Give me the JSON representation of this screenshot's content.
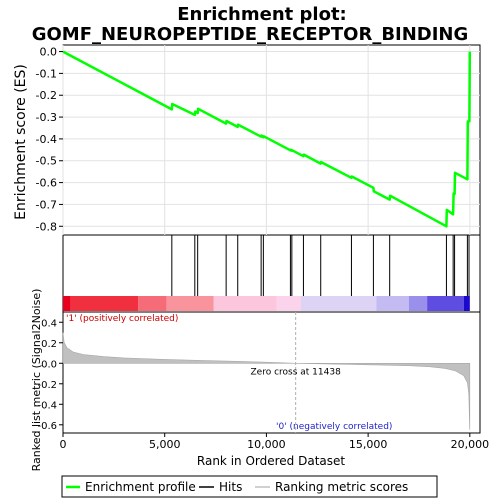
{
  "title_line1": "Enrichment plot:",
  "title_line2": "GOMF_NEUROPEPTIDE_RECEPTOR_BINDING",
  "chart_data": {
    "type": "line",
    "x_range": [
      0,
      20500
    ],
    "x_ticks": [
      0,
      5000,
      10000,
      15000,
      20000
    ],
    "x_tick_labels": [
      "0",
      "5,000",
      "10,000",
      "15,000",
      "20,000"
    ],
    "xlabel": "Rank in Ordered Dataset",
    "es_panel": {
      "ylabel": "Enrichment score (ES)",
      "ylim": [
        -0.84,
        0.03
      ],
      "y_ticks": [
        0.0,
        -0.1,
        -0.2,
        -0.3,
        -0.4,
        -0.5,
        -0.6,
        -0.7,
        -0.8
      ],
      "y_tick_labels": [
        "0.0",
        "-0.1",
        "-0.2",
        "-0.3",
        "-0.4",
        "-0.5",
        "-0.6",
        "-0.7",
        "-0.8"
      ],
      "series": [
        {
          "name": "Enrichment profile",
          "color": "#00ff00",
          "points": [
            [
              0,
              0.0
            ],
            [
              5350,
              -0.265
            ],
            [
              5370,
              -0.24
            ],
            [
              6480,
              -0.29
            ],
            [
              6500,
              -0.275
            ],
            [
              6620,
              -0.282
            ],
            [
              6640,
              -0.262
            ],
            [
              8020,
              -0.33
            ],
            [
              8040,
              -0.318
            ],
            [
              8590,
              -0.345
            ],
            [
              8610,
              -0.335
            ],
            [
              9740,
              -0.39
            ],
            [
              9760,
              -0.385
            ],
            [
              9850,
              -0.392
            ],
            [
              9870,
              -0.388
            ],
            [
              11180,
              -0.452
            ],
            [
              11200,
              -0.45
            ],
            [
              11250,
              -0.454
            ],
            [
              11270,
              -0.452
            ],
            [
              11820,
              -0.479
            ],
            [
              11840,
              -0.472
            ],
            [
              12670,
              -0.513
            ],
            [
              12690,
              -0.506
            ],
            [
              14180,
              -0.578
            ],
            [
              14200,
              -0.572
            ],
            [
              15260,
              -0.624
            ],
            [
              15280,
              -0.64
            ],
            [
              16060,
              -0.678
            ],
            [
              16080,
              -0.66
            ],
            [
              18850,
              -0.8
            ],
            [
              18870,
              -0.725
            ],
            [
              19180,
              -0.745
            ],
            [
              19200,
              -0.65
            ],
            [
              19250,
              -0.652
            ],
            [
              19270,
              -0.555
            ],
            [
              19880,
              -0.585
            ],
            [
              19900,
              -0.32
            ],
            [
              19980,
              -0.32
            ],
            [
              20000,
              0.0
            ]
          ]
        }
      ]
    },
    "hits": {
      "name": "Hits",
      "color": "#000000",
      "ranks": [
        5350,
        6480,
        6620,
        8020,
        8590,
        9740,
        9850,
        11180,
        11250,
        11820,
        12670,
        14180,
        15260,
        16060,
        18850,
        19180,
        19250,
        19880,
        19960
      ]
    },
    "color_bar": {
      "segments": [
        {
          "from": 0,
          "to": 380,
          "color": "#e8001c"
        },
        {
          "from": 380,
          "to": 3700,
          "color": "#f0303f"
        },
        {
          "from": 3700,
          "to": 5100,
          "color": "#f56b78"
        },
        {
          "from": 5100,
          "to": 7400,
          "color": "#f9939c"
        },
        {
          "from": 7400,
          "to": 10500,
          "color": "#fcc6dc"
        },
        {
          "from": 10500,
          "to": 11700,
          "color": "#fbd3ea"
        },
        {
          "from": 11700,
          "to": 15400,
          "color": "#dcd3f5"
        },
        {
          "from": 15400,
          "to": 17000,
          "color": "#c3bbf2"
        },
        {
          "from": 17000,
          "to": 17900,
          "color": "#9a8fea"
        },
        {
          "from": 17900,
          "to": 19700,
          "color": "#5e4de0"
        },
        {
          "from": 19700,
          "to": 20000,
          "color": "#1a08cc"
        }
      ]
    },
    "metric_panel": {
      "name": "Ranking metric scores",
      "ylabel": "Ranked list metric (Signal2Noise)",
      "ylim": [
        -0.68,
        0.5
      ],
      "y_ticks": [
        0.4,
        0.2,
        0.0,
        -0.2,
        -0.4,
        -0.6
      ],
      "y_tick_labels": [
        "0.4",
        "0.2",
        "0.0",
        "-0.2",
        "-0.4",
        "-0.6"
      ],
      "color": "#c0c0c0",
      "points": [
        [
          0,
          0.3
        ],
        [
          60,
          0.2
        ],
        [
          200,
          0.15
        ],
        [
          500,
          0.11
        ],
        [
          1000,
          0.085
        ],
        [
          2000,
          0.065
        ],
        [
          3000,
          0.052
        ],
        [
          5000,
          0.038
        ],
        [
          7000,
          0.026
        ],
        [
          9000,
          0.016
        ],
        [
          10500,
          0.007
        ],
        [
          11438,
          0.0
        ],
        [
          13000,
          -0.007
        ],
        [
          15000,
          -0.015
        ],
        [
          17000,
          -0.024
        ],
        [
          18000,
          -0.033
        ],
        [
          18800,
          -0.05
        ],
        [
          19300,
          -0.075
        ],
        [
          19700,
          -0.12
        ],
        [
          19880,
          -0.19
        ],
        [
          19950,
          -0.3
        ],
        [
          19990,
          -0.62
        ],
        [
          20000,
          -0.65
        ]
      ],
      "zero_cross_label": "Zero cross at 11438",
      "zero_cross": 11438,
      "pos_label": "'1' (positively correlated)",
      "neg_label": "'0' (negatively correlated)"
    },
    "legend": [
      {
        "label": "Enrichment profile",
        "color": "#00ff00"
      },
      {
        "label": "Hits",
        "color": "#000000"
      },
      {
        "label": "Ranking metric scores",
        "color": "#c0c0c0"
      }
    ]
  }
}
